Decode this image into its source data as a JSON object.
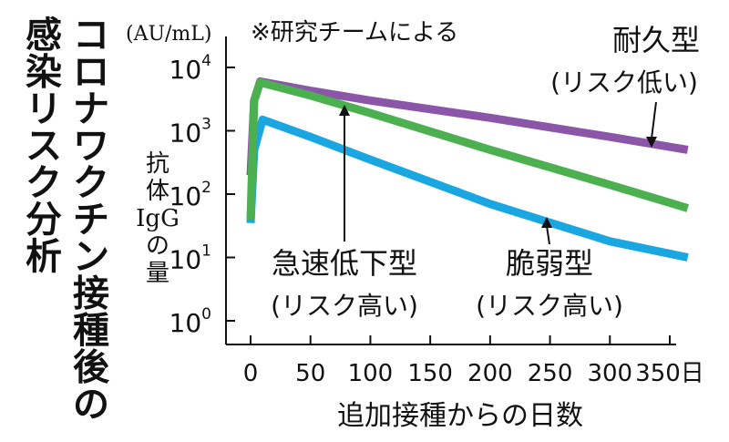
{
  "title": "コロナワクチン接種後の感染リスク分析",
  "note": "※研究チームによる",
  "y_unit": "(AU/mL)",
  "y_label_lines": [
    "抗",
    "体",
    "IgG",
    "の",
    "量"
  ],
  "x_label": "追加接種からの日数",
  "x_suffix": "日",
  "annotations": [
    {
      "series": "durable",
      "label": "耐久型",
      "sub": "(リスク低い)"
    },
    {
      "series": "rapid",
      "label": "急速低下型",
      "sub": "(リスク高い)"
    },
    {
      "series": "fragile",
      "label": "脆弱型",
      "sub": "(リスク高い)"
    }
  ],
  "chart_data": {
    "type": "line",
    "y_scale": "log10",
    "xlim": [
      -10,
      360
    ],
    "ylim": [
      1,
      10000
    ],
    "x_ticks": [
      0,
      50,
      100,
      150,
      200,
      250,
      300,
      350
    ],
    "y_ticks": [
      1,
      10,
      100,
      1000,
      10000
    ],
    "y_tick_labels": [
      {
        "base": "10",
        "exp": "0"
      },
      {
        "base": "10",
        "exp": "1"
      },
      {
        "base": "10",
        "exp": "2"
      },
      {
        "base": "10",
        "exp": "3"
      },
      {
        "base": "10",
        "exp": "4"
      }
    ],
    "series": [
      {
        "key": "durable",
        "name": "耐久型",
        "color": "#8b56a8",
        "x": [
          0,
          3,
          8,
          50,
          100,
          200,
          300,
          365
        ],
        "y": [
          200,
          3000,
          6000,
          4300,
          3000,
          1600,
          800,
          500
        ]
      },
      {
        "key": "rapid",
        "name": "急速低下型",
        "color": "#4caf50",
        "x": [
          0,
          3,
          8,
          50,
          100,
          200,
          300,
          365
        ],
        "y": [
          40,
          3000,
          5800,
          3600,
          1900,
          500,
          140,
          60
        ]
      },
      {
        "key": "fragile",
        "name": "脆弱型",
        "color": "#1aa6e0",
        "x": [
          0,
          3,
          10,
          50,
          100,
          200,
          300,
          365
        ],
        "y": [
          35,
          500,
          1500,
          800,
          350,
          70,
          18,
          10
        ]
      }
    ]
  }
}
